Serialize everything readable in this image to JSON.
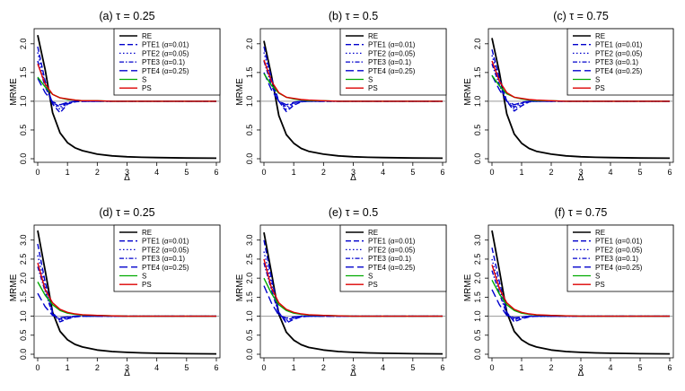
{
  "figure": {
    "legend_labels": [
      "RE",
      "PTE1 (α=0.01)",
      "PTE2 (α=0.05)",
      "PTE3 (α=0.1)",
      "PTE4 (α=0.25)",
      "S",
      "PS"
    ]
  },
  "chart_data": [
    {
      "type": "line",
      "title": "(a)  τ = 0.25",
      "xlabel": "Δ",
      "ylabel": "MRME",
      "xlim": [
        0,
        6
      ],
      "ylim": [
        0,
        2.2
      ],
      "xticks": [
        "0",
        "1",
        "2",
        "3",
        "4",
        "5",
        "6"
      ],
      "yticks": [
        "0.0",
        "0.5",
        "1.0",
        "1.5",
        "2.0"
      ],
      "reference_line": 1.0,
      "x": [
        0,
        0.25,
        0.5,
        0.75,
        1,
        1.25,
        1.5,
        2,
        2.5,
        3,
        3.5,
        4,
        5,
        6
      ],
      "series": [
        {
          "name": "RE",
          "color": "#000000",
          "values": [
            2.15,
            1.55,
            0.8,
            0.45,
            0.28,
            0.19,
            0.14,
            0.08,
            0.05,
            0.035,
            0.025,
            0.02,
            0.012,
            0.01
          ]
        },
        {
          "name": "PTE1 (α=0.01)",
          "color": "#0000cc",
          "values": [
            1.95,
            1.35,
            0.95,
            0.8,
            0.95,
            0.99,
            1.0,
            1.0,
            1.0,
            1.0,
            1.0,
            1.0,
            1.0,
            1.0
          ]
        },
        {
          "name": "PTE2 (α=0.05)",
          "color": "#0000cc",
          "values": [
            1.85,
            1.3,
            0.97,
            0.86,
            0.96,
            0.99,
            1.0,
            1.0,
            1.0,
            1.0,
            1.0,
            1.0,
            1.0,
            1.0
          ]
        },
        {
          "name": "PTE3 (α=0.1)",
          "color": "#0000cc",
          "values": [
            1.7,
            1.25,
            0.98,
            0.9,
            0.97,
            1.0,
            1.0,
            1.0,
            1.0,
            1.0,
            1.0,
            1.0,
            1.0,
            1.0
          ]
        },
        {
          "name": "PTE4 (α=0.25)",
          "color": "#0000cc",
          "values": [
            1.4,
            1.15,
            0.99,
            0.94,
            0.98,
            1.0,
            1.0,
            1.0,
            1.0,
            1.0,
            1.0,
            1.0,
            1.0,
            1.0
          ]
        },
        {
          "name": "S",
          "color": "#00aa00",
          "values": [
            1.42,
            1.25,
            1.12,
            1.06,
            1.03,
            1.02,
            1.01,
            1.01,
            1.0,
            1.0,
            1.0,
            1.0,
            1.0,
            1.0
          ]
        },
        {
          "name": "PS",
          "color": "#dd0000",
          "values": [
            1.65,
            1.3,
            1.12,
            1.06,
            1.04,
            1.02,
            1.01,
            1.01,
            1.0,
            1.0,
            1.0,
            1.0,
            1.0,
            1.0
          ]
        }
      ]
    },
    {
      "type": "line",
      "title": "(b)  τ = 0.5",
      "xlabel": "Δ",
      "ylabel": "MRME",
      "xlim": [
        0,
        6
      ],
      "ylim": [
        0,
        2.2
      ],
      "xticks": [
        "0",
        "1",
        "2",
        "3",
        "4",
        "5",
        "6"
      ],
      "yticks": [
        "0.0",
        "0.5",
        "1.0",
        "1.5",
        "2.0"
      ],
      "reference_line": 1.0,
      "x": [
        0,
        0.25,
        0.5,
        0.75,
        1,
        1.25,
        1.5,
        2,
        2.5,
        3,
        3.5,
        4,
        5,
        6
      ],
      "series": [
        {
          "name": "RE",
          "color": "#000000",
          "values": [
            2.05,
            1.45,
            0.75,
            0.42,
            0.27,
            0.18,
            0.13,
            0.08,
            0.05,
            0.035,
            0.025,
            0.02,
            0.012,
            0.01
          ]
        },
        {
          "name": "PTE1 (α=0.01)",
          "color": "#0000cc",
          "values": [
            1.95,
            1.4,
            1.0,
            0.82,
            0.93,
            0.99,
            1.0,
            1.0,
            1.0,
            1.0,
            1.0,
            1.0,
            1.0,
            1.0
          ]
        },
        {
          "name": "PTE2 (α=0.05)",
          "color": "#0000cc",
          "values": [
            1.85,
            1.35,
            1.0,
            0.86,
            0.95,
            0.99,
            1.0,
            1.0,
            1.0,
            1.0,
            1.0,
            1.0,
            1.0,
            1.0
          ]
        },
        {
          "name": "PTE3 (α=0.1)",
          "color": "#0000cc",
          "values": [
            1.7,
            1.28,
            1.0,
            0.9,
            0.97,
            1.0,
            1.0,
            1.0,
            1.0,
            1.0,
            1.0,
            1.0,
            1.0,
            1.0
          ]
        },
        {
          "name": "PTE4 (α=0.25)",
          "color": "#0000cc",
          "values": [
            1.5,
            1.2,
            1.0,
            0.94,
            0.98,
            1.0,
            1.0,
            1.0,
            1.0,
            1.0,
            1.0,
            1.0,
            1.0,
            1.0
          ]
        },
        {
          "name": "S",
          "color": "#00aa00",
          "values": [
            1.48,
            1.28,
            1.14,
            1.07,
            1.04,
            1.02,
            1.01,
            1.01,
            1.0,
            1.0,
            1.0,
            1.0,
            1.0,
            1.0
          ]
        },
        {
          "name": "PS",
          "color": "#dd0000",
          "values": [
            1.72,
            1.35,
            1.15,
            1.07,
            1.05,
            1.03,
            1.02,
            1.01,
            1.0,
            1.0,
            1.0,
            1.0,
            1.0,
            1.0
          ]
        }
      ]
    },
    {
      "type": "line",
      "title": "(c)  τ = 0.75",
      "xlabel": "Δ",
      "ylabel": "MRME",
      "xlim": [
        0,
        6
      ],
      "ylim": [
        0,
        2.2
      ],
      "xticks": [
        "0",
        "1",
        "2",
        "3",
        "4",
        "5",
        "6"
      ],
      "yticks": [
        "0.0",
        "0.5",
        "1.0",
        "1.5",
        "2.0"
      ],
      "reference_line": 1.0,
      "x": [
        0,
        0.25,
        0.5,
        0.75,
        1,
        1.25,
        1.5,
        2,
        2.5,
        3,
        3.5,
        4,
        5,
        6
      ],
      "series": [
        {
          "name": "RE",
          "color": "#000000",
          "values": [
            2.1,
            1.5,
            0.78,
            0.43,
            0.27,
            0.18,
            0.13,
            0.08,
            0.05,
            0.035,
            0.025,
            0.02,
            0.012,
            0.01
          ]
        },
        {
          "name": "PTE1 (α=0.01)",
          "color": "#0000cc",
          "values": [
            1.9,
            1.4,
            1.0,
            0.83,
            0.92,
            0.99,
            1.0,
            1.0,
            1.0,
            1.0,
            1.0,
            1.0,
            1.0,
            1.0
          ]
        },
        {
          "name": "PTE2 (α=0.05)",
          "color": "#0000cc",
          "values": [
            1.8,
            1.35,
            1.0,
            0.87,
            0.95,
            0.99,
            1.0,
            1.0,
            1.0,
            1.0,
            1.0,
            1.0,
            1.0,
            1.0
          ]
        },
        {
          "name": "PTE3 (α=0.1)",
          "color": "#0000cc",
          "values": [
            1.65,
            1.28,
            1.0,
            0.9,
            0.97,
            1.0,
            1.0,
            1.0,
            1.0,
            1.0,
            1.0,
            1.0,
            1.0,
            1.0
          ]
        },
        {
          "name": "PTE4 (α=0.25)",
          "color": "#0000cc",
          "values": [
            1.45,
            1.2,
            1.0,
            0.94,
            0.98,
            1.0,
            1.0,
            1.0,
            1.0,
            1.0,
            1.0,
            1.0,
            1.0,
            1.0
          ]
        },
        {
          "name": "S",
          "color": "#00aa00",
          "values": [
            1.45,
            1.27,
            1.13,
            1.07,
            1.04,
            1.02,
            1.01,
            1.01,
            1.0,
            1.0,
            1.0,
            1.0,
            1.0,
            1.0
          ]
        },
        {
          "name": "PS",
          "color": "#dd0000",
          "values": [
            1.7,
            1.35,
            1.15,
            1.07,
            1.05,
            1.03,
            1.02,
            1.01,
            1.0,
            1.0,
            1.0,
            1.0,
            1.0,
            1.0
          ]
        }
      ]
    },
    {
      "type": "line",
      "title": "(d)  τ = 0.25",
      "xlabel": "Δ",
      "ylabel": "MRME",
      "xlim": [
        0,
        6
      ],
      "ylim": [
        0,
        3.3
      ],
      "xticks": [
        "0",
        "1",
        "2",
        "3",
        "4",
        "5",
        "6"
      ],
      "yticks": [
        "0.0",
        "0.5",
        "1.0",
        "1.5",
        "2.0",
        "2.5",
        "3.0"
      ],
      "reference_line": 1.0,
      "x": [
        0,
        0.25,
        0.5,
        0.75,
        1,
        1.25,
        1.5,
        2,
        2.5,
        3,
        3.5,
        4,
        5,
        6
      ],
      "series": [
        {
          "name": "RE",
          "color": "#000000",
          "values": [
            3.25,
            2.2,
            1.1,
            0.6,
            0.38,
            0.26,
            0.19,
            0.11,
            0.07,
            0.05,
            0.035,
            0.025,
            0.015,
            0.01
          ]
        },
        {
          "name": "PTE1 (α=0.01)",
          "color": "#0000cc",
          "values": [
            2.9,
            1.9,
            1.1,
            0.85,
            0.93,
            0.98,
            1.0,
            1.0,
            1.0,
            1.0,
            1.0,
            1.0,
            1.0,
            1.0
          ]
        },
        {
          "name": "PTE2 (α=0.05)",
          "color": "#0000cc",
          "values": [
            2.6,
            1.8,
            1.08,
            0.88,
            0.95,
            0.99,
            1.0,
            1.0,
            1.0,
            1.0,
            1.0,
            1.0,
            1.0,
            1.0
          ]
        },
        {
          "name": "PTE3 (α=0.1)",
          "color": "#0000cc",
          "values": [
            2.3,
            1.65,
            1.05,
            0.92,
            0.97,
            1.0,
            1.0,
            1.0,
            1.0,
            1.0,
            1.0,
            1.0,
            1.0,
            1.0
          ]
        },
        {
          "name": "PTE4 (α=0.25)",
          "color": "#0000cc",
          "values": [
            1.6,
            1.25,
            1.02,
            0.96,
            0.98,
            1.0,
            1.0,
            1.0,
            1.0,
            1.0,
            1.0,
            1.0,
            1.0,
            1.0
          ]
        },
        {
          "name": "S",
          "color": "#00aa00",
          "values": [
            1.9,
            1.55,
            1.3,
            1.15,
            1.08,
            1.05,
            1.03,
            1.02,
            1.01,
            1.0,
            1.0,
            1.0,
            1.0,
            1.0
          ]
        },
        {
          "name": "PS",
          "color": "#dd0000",
          "values": [
            2.4,
            1.7,
            1.35,
            1.18,
            1.1,
            1.06,
            1.04,
            1.02,
            1.01,
            1.0,
            1.0,
            1.0,
            1.0,
            1.0
          ]
        }
      ]
    },
    {
      "type": "line",
      "title": "(e)  τ = 0.5",
      "xlabel": "Δ",
      "ylabel": "MRME",
      "xlim": [
        0,
        6
      ],
      "ylim": [
        0,
        3.3
      ],
      "xticks": [
        "0",
        "1",
        "2",
        "3",
        "4",
        "5",
        "6"
      ],
      "yticks": [
        "0.0",
        "0.5",
        "1.0",
        "1.5",
        "2.0",
        "2.5",
        "3.0"
      ],
      "reference_line": 1.0,
      "x": [
        0,
        0.25,
        0.5,
        0.75,
        1,
        1.25,
        1.5,
        2,
        2.5,
        3,
        3.5,
        4,
        5,
        6
      ],
      "series": [
        {
          "name": "RE",
          "color": "#000000",
          "values": [
            3.2,
            2.15,
            1.05,
            0.58,
            0.37,
            0.25,
            0.18,
            0.11,
            0.07,
            0.05,
            0.035,
            0.025,
            0.015,
            0.01
          ]
        },
        {
          "name": "PTE1 (α=0.01)",
          "color": "#0000cc",
          "values": [
            3.0,
            2.0,
            1.1,
            0.82,
            0.92,
            0.98,
            1.0,
            1.0,
            1.0,
            1.0,
            1.0,
            1.0,
            1.0,
            1.0
          ]
        },
        {
          "name": "PTE2 (α=0.05)",
          "color": "#0000cc",
          "values": [
            2.7,
            1.85,
            1.08,
            0.86,
            0.94,
            0.99,
            1.0,
            1.0,
            1.0,
            1.0,
            1.0,
            1.0,
            1.0,
            1.0
          ]
        },
        {
          "name": "PTE3 (α=0.1)",
          "color": "#0000cc",
          "values": [
            2.4,
            1.7,
            1.05,
            0.9,
            0.96,
            1.0,
            1.0,
            1.0,
            1.0,
            1.0,
            1.0,
            1.0,
            1.0,
            1.0
          ]
        },
        {
          "name": "PTE4 (α=0.25)",
          "color": "#0000cc",
          "values": [
            1.8,
            1.35,
            1.02,
            0.95,
            0.98,
            1.0,
            1.0,
            1.0,
            1.0,
            1.0,
            1.0,
            1.0,
            1.0,
            1.0
          ]
        },
        {
          "name": "S",
          "color": "#00aa00",
          "values": [
            2.0,
            1.6,
            1.3,
            1.15,
            1.08,
            1.05,
            1.03,
            1.02,
            1.01,
            1.0,
            1.0,
            1.0,
            1.0,
            1.0
          ]
        },
        {
          "name": "PS",
          "color": "#dd0000",
          "values": [
            2.5,
            1.75,
            1.35,
            1.18,
            1.1,
            1.06,
            1.04,
            1.02,
            1.01,
            1.0,
            1.0,
            1.0,
            1.0,
            1.0
          ]
        }
      ]
    },
    {
      "type": "line",
      "title": "(f)  τ = 0.75",
      "xlabel": "Δ",
      "ylabel": "MRME",
      "xlim": [
        0,
        6
      ],
      "ylim": [
        0,
        3.3
      ],
      "xticks": [
        "0",
        "1",
        "2",
        "3",
        "4",
        "5",
        "6"
      ],
      "yticks": [
        "0.0",
        "0.5",
        "1.0",
        "1.5",
        "2.0",
        "2.5",
        "3.0"
      ],
      "reference_line": 1.0,
      "x": [
        0,
        0.25,
        0.5,
        0.75,
        1,
        1.25,
        1.5,
        2,
        2.5,
        3,
        3.5,
        4,
        5,
        6
      ],
      "series": [
        {
          "name": "RE",
          "color": "#000000",
          "values": [
            3.25,
            2.2,
            1.1,
            0.6,
            0.38,
            0.26,
            0.19,
            0.11,
            0.07,
            0.05,
            0.035,
            0.025,
            0.015,
            0.01
          ]
        },
        {
          "name": "PTE1 (α=0.01)",
          "color": "#0000cc",
          "values": [
            2.8,
            1.9,
            1.1,
            0.85,
            0.93,
            0.98,
            1.0,
            1.0,
            1.0,
            1.0,
            1.0,
            1.0,
            1.0,
            1.0
          ]
        },
        {
          "name": "PTE2 (α=0.05)",
          "color": "#0000cc",
          "values": [
            2.5,
            1.75,
            1.07,
            0.88,
            0.95,
            0.99,
            1.0,
            1.0,
            1.0,
            1.0,
            1.0,
            1.0,
            1.0,
            1.0
          ]
        },
        {
          "name": "PTE3 (α=0.1)",
          "color": "#0000cc",
          "values": [
            2.2,
            1.6,
            1.05,
            0.92,
            0.97,
            1.0,
            1.0,
            1.0,
            1.0,
            1.0,
            1.0,
            1.0,
            1.0,
            1.0
          ]
        },
        {
          "name": "PTE4 (α=0.25)",
          "color": "#0000cc",
          "values": [
            1.7,
            1.3,
            1.02,
            0.96,
            0.98,
            1.0,
            1.0,
            1.0,
            1.0,
            1.0,
            1.0,
            1.0,
            1.0,
            1.0
          ]
        },
        {
          "name": "S",
          "color": "#00aa00",
          "values": [
            1.95,
            1.58,
            1.3,
            1.15,
            1.08,
            1.05,
            1.03,
            1.02,
            1.01,
            1.0,
            1.0,
            1.0,
            1.0,
            1.0
          ]
        },
        {
          "name": "PS",
          "color": "#dd0000",
          "values": [
            2.35,
            1.72,
            1.35,
            1.18,
            1.1,
            1.06,
            1.04,
            1.02,
            1.01,
            1.0,
            1.0,
            1.0,
            1.0,
            1.0
          ]
        }
      ]
    }
  ]
}
